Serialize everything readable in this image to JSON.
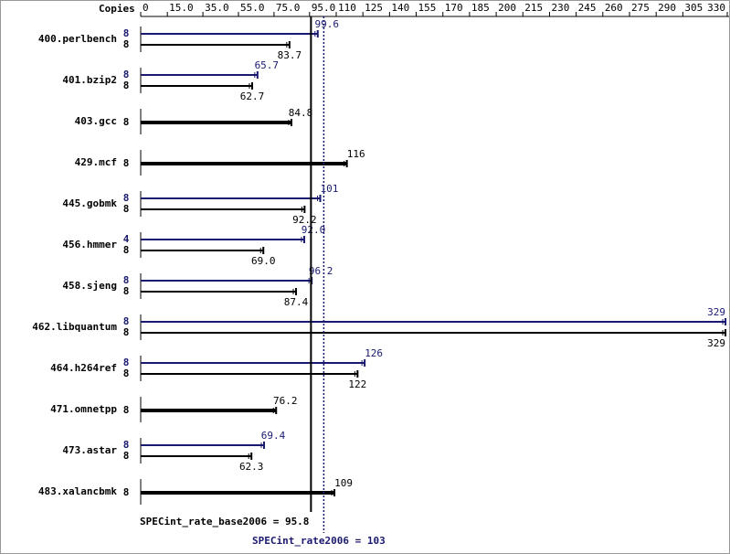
{
  "chart_data": {
    "type": "spec-bar",
    "copies_header": "Copies",
    "categories": [
      "400.perlbench",
      "401.bzip2",
      "403.gcc",
      "429.mcf",
      "445.gobmk",
      "456.hmmer",
      "458.sjeng",
      "462.libquantum",
      "464.h264ref",
      "471.omnetpp",
      "473.astar",
      "483.xalancbmk"
    ],
    "series": [
      {
        "color": "#191970",
        "copies": [
          8,
          8,
          null,
          null,
          8,
          4,
          8,
          8,
          8,
          null,
          8,
          null
        ],
        "values": [
          99.6,
          65.7,
          null,
          null,
          101,
          92.0,
          96.2,
          329,
          126,
          null,
          69.4,
          null
        ],
        "value_labels": [
          "99.6",
          "65.7",
          null,
          null,
          "101",
          "92.0",
          "96.2",
          "329",
          "126",
          null,
          "69.4",
          null
        ]
      },
      {
        "color": "#000000",
        "copies": [
          8,
          8,
          8,
          8,
          8,
          8,
          8,
          8,
          8,
          8,
          8,
          8
        ],
        "values": [
          83.7,
          62.7,
          84.8,
          116,
          92.2,
          69.0,
          87.4,
          329,
          122,
          76.2,
          62.3,
          109
        ],
        "value_labels": [
          "83.7",
          "62.7",
          "84.8",
          "116",
          "92.2",
          "69.0",
          "87.4",
          "329",
          "122",
          "76.2",
          "62.3",
          "109"
        ]
      }
    ],
    "reference_lines": [
      {
        "label": "SPECint_rate_base2006 = 95.8",
        "value": 95.8,
        "color": "#000000",
        "style": "solid"
      },
      {
        "label": "SPECint_rate2006 = 103",
        "value": 103,
        "color": "#191970",
        "style": "dotted"
      }
    ],
    "xlim": [
      0,
      330
    ],
    "xticks": [
      0,
      {
        "value": 15,
        "label": "15.0"
      },
      {
        "value": 35,
        "label": "35.0"
      },
      {
        "value": 55,
        "label": "55.0"
      },
      {
        "value": 75,
        "label": "75.0"
      },
      {
        "value": 95,
        "label": "95.0"
      },
      110,
      125,
      140,
      155,
      170,
      185,
      200,
      215,
      230,
      245,
      260,
      275,
      290,
      305,
      330
    ]
  }
}
